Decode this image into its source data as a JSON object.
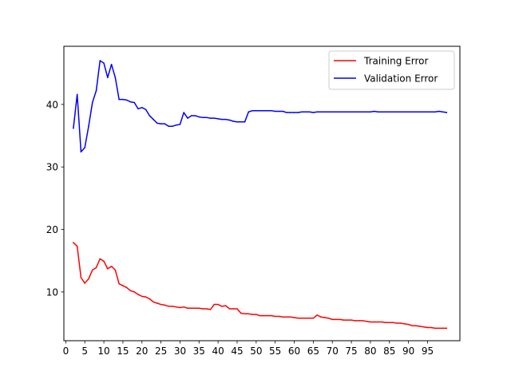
{
  "chart_data": {
    "type": "line",
    "title": "",
    "xlabel": "",
    "ylabel": "",
    "xlim": [
      -0.5,
      103.5
    ],
    "ylim": [
      2.2,
      49.3
    ],
    "xticks": [
      0,
      5,
      10,
      15,
      20,
      25,
      30,
      35,
      40,
      45,
      50,
      55,
      60,
      65,
      70,
      75,
      80,
      85,
      90,
      95
    ],
    "yticks": [
      10,
      20,
      30,
      40
    ],
    "grid": false,
    "legend_position": "upper right",
    "x": [
      2,
      3,
      4,
      5,
      6,
      7,
      8,
      9,
      10,
      11,
      12,
      13,
      14,
      15,
      16,
      17,
      18,
      19,
      20,
      21,
      22,
      23,
      24,
      25,
      26,
      27,
      28,
      29,
      30,
      31,
      32,
      33,
      34,
      35,
      36,
      37,
      38,
      39,
      40,
      41,
      42,
      43,
      44,
      45,
      46,
      47,
      48,
      49,
      50,
      51,
      52,
      53,
      54,
      55,
      56,
      57,
      58,
      59,
      60,
      61,
      62,
      63,
      64,
      65,
      66,
      67,
      68,
      69,
      70,
      71,
      72,
      73,
      74,
      75,
      76,
      77,
      78,
      79,
      80,
      81,
      82,
      83,
      84,
      85,
      86,
      87,
      88,
      89,
      90,
      91,
      92,
      93,
      94,
      95,
      96,
      97,
      98,
      99,
      100
    ],
    "series": [
      {
        "name": "Training Error",
        "color": "#ff0000",
        "values": [
          17.9,
          17.3,
          12.3,
          11.4,
          12.1,
          13.5,
          13.9,
          15.3,
          14.9,
          13.7,
          14.1,
          13.5,
          11.3,
          11.0,
          10.7,
          10.2,
          10.0,
          9.6,
          9.3,
          9.2,
          8.9,
          8.4,
          8.2,
          8.0,
          7.9,
          7.7,
          7.7,
          7.6,
          7.5,
          7.6,
          7.4,
          7.4,
          7.4,
          7.4,
          7.3,
          7.3,
          7.2,
          8.0,
          8.0,
          7.7,
          7.8,
          7.3,
          7.3,
          7.3,
          6.6,
          6.5,
          6.5,
          6.4,
          6.4,
          6.2,
          6.2,
          6.2,
          6.2,
          6.1,
          6.1,
          6.0,
          6.0,
          6.0,
          5.9,
          5.8,
          5.8,
          5.8,
          5.8,
          5.8,
          6.3,
          6.0,
          5.9,
          5.8,
          5.6,
          5.6,
          5.6,
          5.5,
          5.5,
          5.5,
          5.4,
          5.4,
          5.4,
          5.3,
          5.2,
          5.2,
          5.2,
          5.2,
          5.1,
          5.1,
          5.1,
          5.0,
          5.0,
          4.9,
          4.8,
          4.6,
          4.6,
          4.5,
          4.4,
          4.3,
          4.3,
          4.2,
          4.2,
          4.2,
          4.2
        ]
      },
      {
        "name": "Validation Error",
        "color": "#0000ff",
        "values": [
          36.2,
          41.6,
          32.4,
          33.1,
          36.5,
          40.3,
          42.2,
          47.0,
          46.6,
          44.3,
          46.4,
          44.3,
          40.8,
          40.8,
          40.7,
          40.4,
          40.3,
          39.3,
          39.5,
          39.2,
          38.2,
          37.6,
          37.0,
          36.9,
          36.9,
          36.5,
          36.5,
          36.7,
          36.8,
          38.7,
          37.8,
          38.2,
          38.2,
          38.0,
          37.9,
          37.9,
          37.8,
          37.8,
          37.7,
          37.6,
          37.6,
          37.5,
          37.3,
          37.2,
          37.2,
          37.2,
          38.8,
          39.0,
          39.0,
          39.0,
          39.0,
          39.0,
          39.0,
          38.9,
          38.9,
          38.9,
          38.7,
          38.7,
          38.7,
          38.7,
          38.8,
          38.8,
          38.8,
          38.7,
          38.8,
          38.8,
          38.8,
          38.8,
          38.8,
          38.8,
          38.8,
          38.8,
          38.8,
          38.8,
          38.8,
          38.8,
          38.8,
          38.8,
          38.8,
          38.9,
          38.8,
          38.8,
          38.8,
          38.8,
          38.8,
          38.8,
          38.8,
          38.8,
          38.8,
          38.8,
          38.8,
          38.8,
          38.8,
          38.8,
          38.8,
          38.8,
          38.9,
          38.8,
          38.7
        ]
      }
    ]
  }
}
